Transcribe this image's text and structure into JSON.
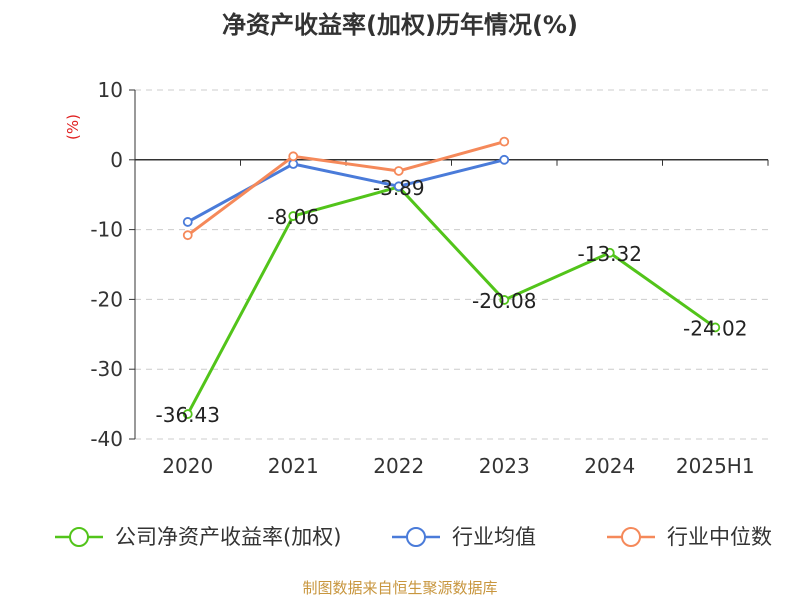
{
  "chart_data": {
    "type": "line",
    "title": "净资产收益率(加权)历年情况(%)",
    "y_unit_label": "(%)",
    "categories": [
      "2020",
      "2021",
      "2022",
      "2023",
      "2024",
      "2025H1"
    ],
    "ylim": [
      -40,
      10
    ],
    "y_ticks": [
      "10",
      "0",
      "-10",
      "-20",
      "-30",
      "-40"
    ],
    "grid": true,
    "legend_position": "bottom",
    "series": [
      {
        "name": "公司净资产收益率(加权)",
        "color": "#52c41a",
        "values": [
          -36.43,
          -8.06,
          -3.89,
          -20.08,
          -13.32,
          -24.02
        ],
        "data_labels": [
          "-36.43",
          "-8.06",
          "-3.89",
          "-20.08",
          "-13.32",
          "-24.02"
        ]
      },
      {
        "name": "行业均值",
        "color": "#4a7bd9",
        "values": [
          -8.9,
          -0.6,
          -3.8,
          0.0,
          null,
          null
        ]
      },
      {
        "name": "行业中位数",
        "color": "#f5895a",
        "values": [
          -10.8,
          0.5,
          -1.6,
          2.6,
          null,
          null
        ]
      }
    ]
  },
  "source_text": "制图数据来自恒生聚源数据库",
  "colors": {
    "title": "#333333",
    "unit": "#e02020",
    "source": "#c8963e",
    "grid": "#cccccc",
    "axis": "#333333"
  }
}
